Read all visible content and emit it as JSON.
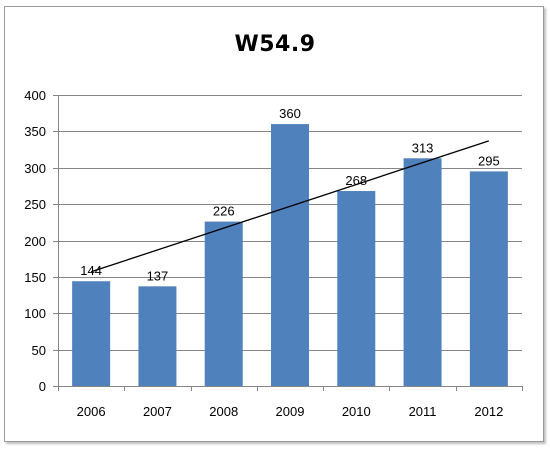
{
  "chart_data": {
    "type": "bar",
    "title": "W54.9",
    "xlabel": "",
    "ylabel": "",
    "categories": [
      "2006",
      "2007",
      "2008",
      "2009",
      "2010",
      "2011",
      "2012"
    ],
    "values": [
      144,
      137,
      226,
      360,
      268,
      313,
      295
    ],
    "data_labels": [
      "144",
      "137",
      "226",
      "360",
      "268",
      "313",
      "295"
    ],
    "ylim": [
      0,
      400
    ],
    "yticks": [
      0,
      50,
      100,
      150,
      200,
      250,
      300,
      350,
      400
    ],
    "ytick_labels": [
      "0",
      "50",
      "100",
      "150",
      "200",
      "250",
      "300",
      "350",
      "400"
    ],
    "grid": true,
    "legend": "none",
    "trendline": {
      "type": "linear",
      "start": {
        "x": "2006",
        "y": 157
      },
      "end": {
        "x": "2012",
        "y": 337
      }
    },
    "colors": {
      "bar": "#4f81bd",
      "grid": "#868686",
      "axis": "#868686",
      "trendline": "#000000"
    }
  }
}
